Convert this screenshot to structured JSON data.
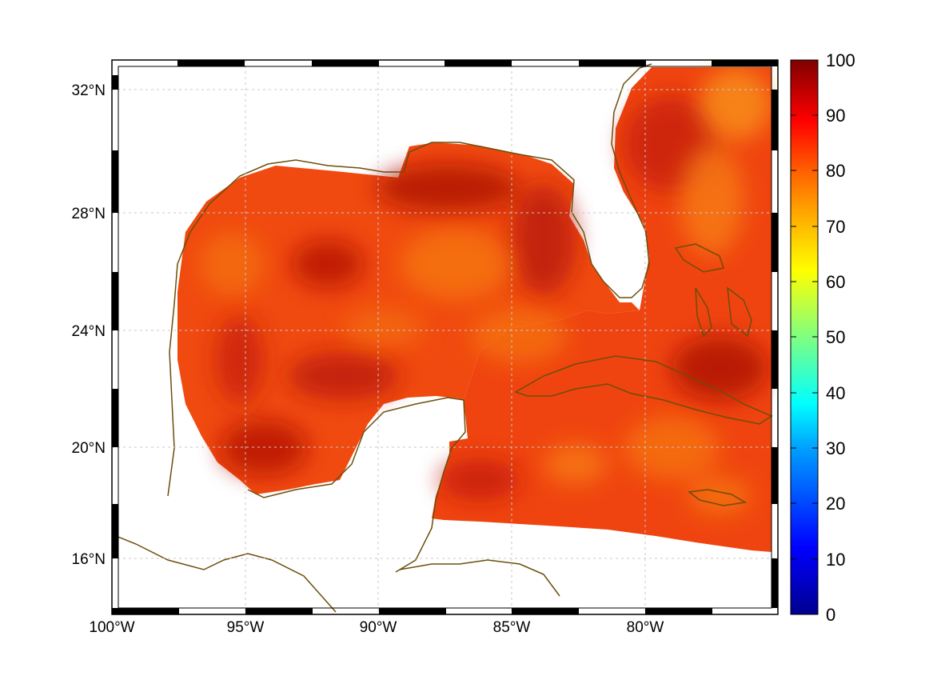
{
  "map": {
    "lon_ticks": [
      "100°W",
      "95°W",
      "90°W",
      "85°W",
      "80°W"
    ],
    "lat_ticks": [
      "32°N",
      "28°N",
      "24°N",
      "20°N",
      "16°N"
    ],
    "extent": {
      "lon_min": -100,
      "lon_max": -75,
      "lat_min": 14,
      "lat_max": 33
    },
    "coastline_color": "#6b4e0a",
    "gridlines": true
  },
  "colorbar": {
    "labels": [
      "100",
      "90",
      "80",
      "70",
      "60",
      "50",
      "40",
      "30",
      "20",
      "10",
      "0"
    ],
    "min": 0,
    "max": 100,
    "colormap": "jet"
  },
  "field_colors": {
    "dominant": "#f24a0c",
    "dark_red": "#b30e06",
    "orange": "#f7780f",
    "yellow_orange": "#fba41a"
  }
}
